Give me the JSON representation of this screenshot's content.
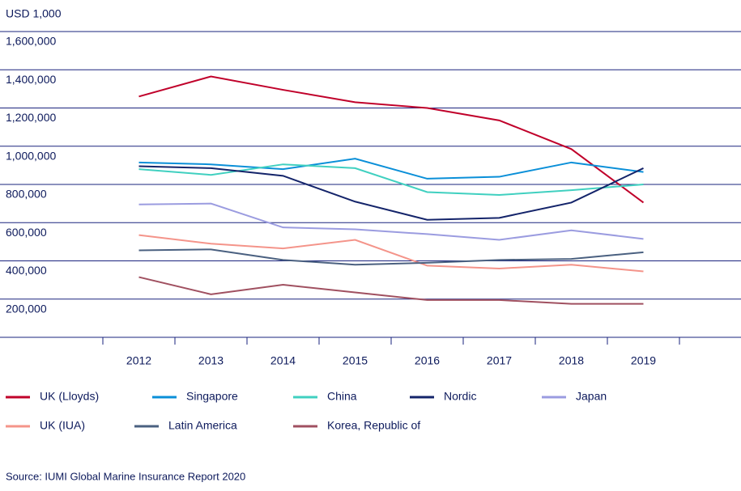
{
  "chart_data": {
    "type": "line",
    "y_axis_label": "USD 1,000",
    "source": "Source: IUMI Global Marine Insurance Report 2020",
    "categories": [
      "2012",
      "2013",
      "2014",
      "2015",
      "2016",
      "2017",
      "2018",
      "2019"
    ],
    "ylim": [
      0,
      1600000
    ],
    "yticks": [
      {
        "value": 200000,
        "label": "200,000"
      },
      {
        "value": 400000,
        "label": "400,000"
      },
      {
        "value": 600000,
        "label": "600,000"
      },
      {
        "value": 800000,
        "label": "800,000"
      },
      {
        "value": 1000000,
        "label": "1,000,000"
      },
      {
        "value": 1200000,
        "label": "1,200,000"
      },
      {
        "value": 1400000,
        "label": "1,400,000"
      },
      {
        "value": 1600000,
        "label": "1,600,000"
      }
    ],
    "grid": true,
    "series": [
      {
        "name": "UK (Lloyds)",
        "color": "#c0002a",
        "values": [
          1260000,
          1365000,
          1295000,
          1230000,
          1200000,
          1135000,
          985000,
          705000
        ]
      },
      {
        "name": "Singapore",
        "color": "#0a8fd8",
        "values": [
          915000,
          905000,
          880000,
          935000,
          830000,
          840000,
          915000,
          865000
        ]
      },
      {
        "name": "China",
        "color": "#40d0c0",
        "values": [
          880000,
          850000,
          905000,
          885000,
          760000,
          745000,
          770000,
          800000
        ]
      },
      {
        "name": "Nordic",
        "color": "#14246a",
        "values": [
          895000,
          885000,
          845000,
          710000,
          615000,
          625000,
          705000,
          885000
        ]
      },
      {
        "name": "Japan",
        "color": "#9b9ce0",
        "values": [
          695000,
          700000,
          575000,
          565000,
          540000,
          510000,
          560000,
          515000
        ]
      },
      {
        "name": "UK (IUA)",
        "color": "#f4948a",
        "values": [
          535000,
          490000,
          465000,
          510000,
          375000,
          360000,
          380000,
          345000
        ]
      },
      {
        "name": "Latin America",
        "color": "#4a6080",
        "values": [
          455000,
          460000,
          405000,
          380000,
          390000,
          405000,
          410000,
          445000
        ]
      },
      {
        "name": "Korea, Republic of",
        "color": "#a05060",
        "values": [
          315000,
          225000,
          275000,
          235000,
          195000,
          195000,
          175000,
          175000
        ]
      }
    ]
  }
}
